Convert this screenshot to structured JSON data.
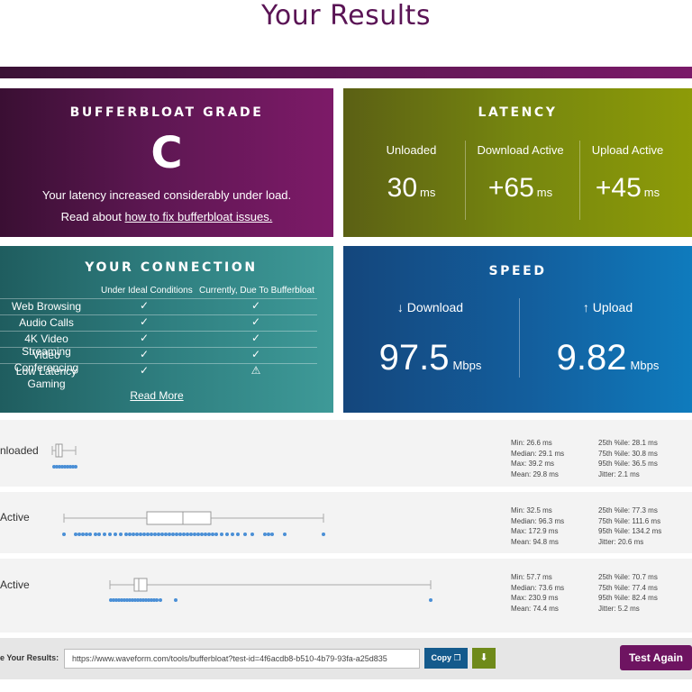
{
  "page": {
    "title": "Your Results"
  },
  "grade": {
    "heading": "BUFFERBLOAT GRADE",
    "letter": "C",
    "line1": "Your latency increased considerably under load.",
    "line2_prefix": "Read about ",
    "line2_link": "how to fix bufferbloat issues."
  },
  "latency": {
    "heading": "LATENCY",
    "columns": [
      {
        "label": "Unloaded",
        "value": "30",
        "unit": "ms"
      },
      {
        "label": "Download Active",
        "value": "+65",
        "unit": "ms"
      },
      {
        "label": "Upload Active",
        "value": "+45",
        "unit": "ms"
      }
    ]
  },
  "connection": {
    "heading": "YOUR CONNECTION",
    "col1": "Under Ideal Conditions",
    "col2": "Currently, Due To Bufferbloat",
    "rows": [
      {
        "name": "Web Browsing",
        "ideal": "✓",
        "current": "✓"
      },
      {
        "name": "Audio Calls",
        "ideal": "✓",
        "current": "✓"
      },
      {
        "name": "4K Video Streaming",
        "ideal": "✓",
        "current": "✓"
      },
      {
        "name": "Video Conferencing",
        "ideal": "✓",
        "current": "✓"
      },
      {
        "name": "Low Latency Gaming",
        "ideal": "✓",
        "current": "⚠"
      }
    ],
    "read_more": "Read More"
  },
  "speed": {
    "heading": "SPEED",
    "download": {
      "label": "↓ Download",
      "value": "97.5",
      "unit": "Mbps"
    },
    "upload": {
      "label": "↑ Upload",
      "value": "9.82",
      "unit": "Mbps"
    }
  },
  "plots": [
    {
      "label": "nloaded",
      "stats_left": [
        "Min: 26.6 ms",
        "Median: 29.1 ms",
        "Max: 39.2 ms",
        "Mean: 29.8 ms"
      ],
      "stats_right": [
        "25th %ile: 28.1 ms",
        "75th %ile: 30.8 ms",
        "95th %ile: 36.5 ms",
        "Jitter: 2.1 ms"
      ]
    },
    {
      "label": "Active",
      "stats_left": [
        "Min: 32.5 ms",
        "Median: 96.3 ms",
        "Max: 172.9 ms",
        "Mean: 94.8 ms"
      ],
      "stats_right": [
        "25th %ile: 77.3 ms",
        "75th %ile: 111.6 ms",
        "95th %ile: 134.2 ms",
        "Jitter: 20.6 ms"
      ]
    },
    {
      "label": "Active",
      "stats_left": [
        "Min: 57.7 ms",
        "Median: 73.6 ms",
        "Max: 230.9 ms",
        "Mean: 74.4 ms"
      ],
      "stats_right": [
        "25th %ile: 70.7 ms",
        "75th %ile: 77.4 ms",
        "95th %ile: 82.4 ms",
        "Jitter: 5.2 ms"
      ]
    }
  ],
  "share": {
    "label": "e Your Results:",
    "url": "https://www.waveform.com/tools/bufferbloat?test-id=4f6acdb8-b510-4b79-93fa-a25d835",
    "copy_label": "Copy",
    "download_icon": "download-icon",
    "test_again": "Test Again"
  },
  "colors": {
    "brand_purple": "#5a1455",
    "grade_bg": "#5d1752",
    "latency_bg": "#76860f",
    "connection_bg": "#2f7f80",
    "speed_bg": "#135f9e",
    "plot_blue": "#4a8fd6"
  }
}
